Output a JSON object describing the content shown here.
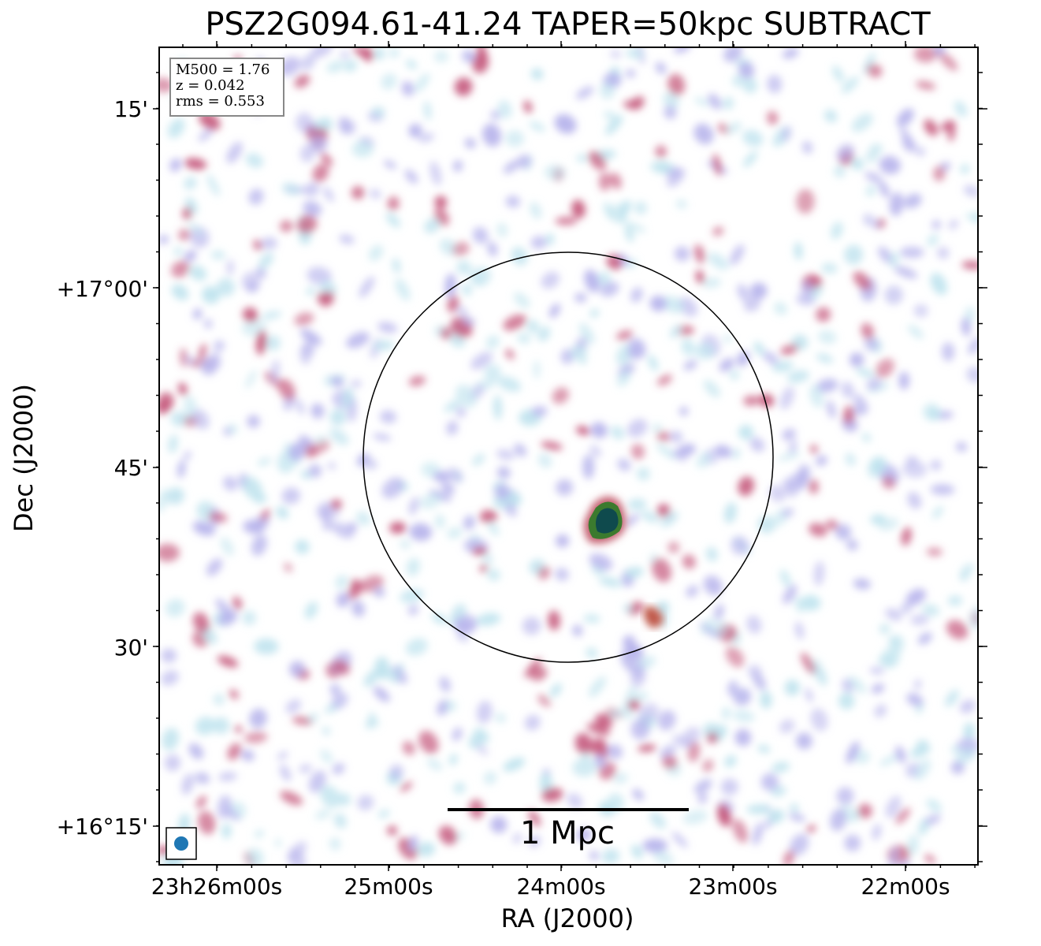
{
  "title": "PSZ2G094.61-41.24 TAPER=50kpc SUBTRACT",
  "info": {
    "m500": "M500 = 1.76",
    "z": "z = 0.042",
    "rms": "rms = 0.553"
  },
  "scalebar": {
    "label": "1 Mpc"
  },
  "axes": {
    "xlabel": "RA (J2000)",
    "ylabel": "Dec (J2000)",
    "xticks": [
      "23h26m00s",
      "25m00s",
      "24m00s",
      "23m00s",
      "22m00s"
    ],
    "yticks": [
      "15'",
      "+17°00'",
      "45'",
      "30'",
      "+16°15'"
    ]
  },
  "colors": {
    "frame": "#000000",
    "beam": "#1f77b4",
    "noise_low": "#bfe3ee",
    "noise_mid": "#b7b4ec",
    "noise_high": "#c4567a",
    "source": "#0f4a4d"
  }
}
